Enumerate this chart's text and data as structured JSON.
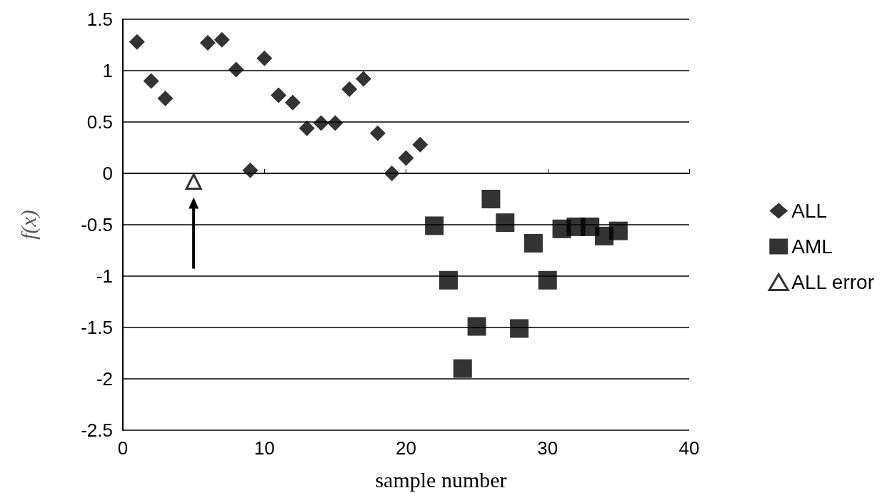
{
  "chart_data": {
    "type": "scatter",
    "xlabel": "sample number",
    "ylabel": "f(x)",
    "xlim": [
      0,
      40
    ],
    "xticks": [
      0,
      10,
      20,
      30,
      40
    ],
    "ylim": [
      -2.5,
      1.5
    ],
    "yticks": [
      -2.5,
      -2,
      -1.5,
      -1,
      -0.5,
      0,
      0.5,
      1,
      1.5
    ],
    "grid": "y",
    "legend": "right",
    "series": [
      {
        "name": "ALL",
        "color": "#000000",
        "marker": "diamond",
        "x": [
          1,
          2,
          3,
          6,
          7,
          8,
          9,
          10,
          11,
          12,
          13,
          14,
          15,
          16,
          17,
          18,
          19,
          20,
          21
        ],
        "values": [
          1.28,
          0.9,
          0.73,
          1.27,
          1.3,
          1.01,
          0.03,
          1.12,
          0.76,
          0.69,
          0.44,
          0.49,
          0.49,
          0.82,
          0.92,
          0.39,
          0.0,
          0.15,
          0.28
        ]
      },
      {
        "name": "AML",
        "color": "#000000",
        "marker": "square",
        "x": [
          22,
          23,
          24,
          25,
          26,
          27,
          28,
          29,
          30,
          31,
          32,
          33,
          34,
          35
        ],
        "values": [
          -0.51,
          -1.04,
          -1.9,
          -1.49,
          -0.25,
          -0.48,
          -1.51,
          -0.68,
          -1.04,
          -0.54,
          -0.52,
          -0.52,
          -0.61,
          -0.56
        ]
      },
      {
        "name": "ALL error",
        "color": "#000000",
        "marker": "triangle",
        "x": [
          5
        ],
        "values": [
          -0.08
        ]
      }
    ]
  }
}
